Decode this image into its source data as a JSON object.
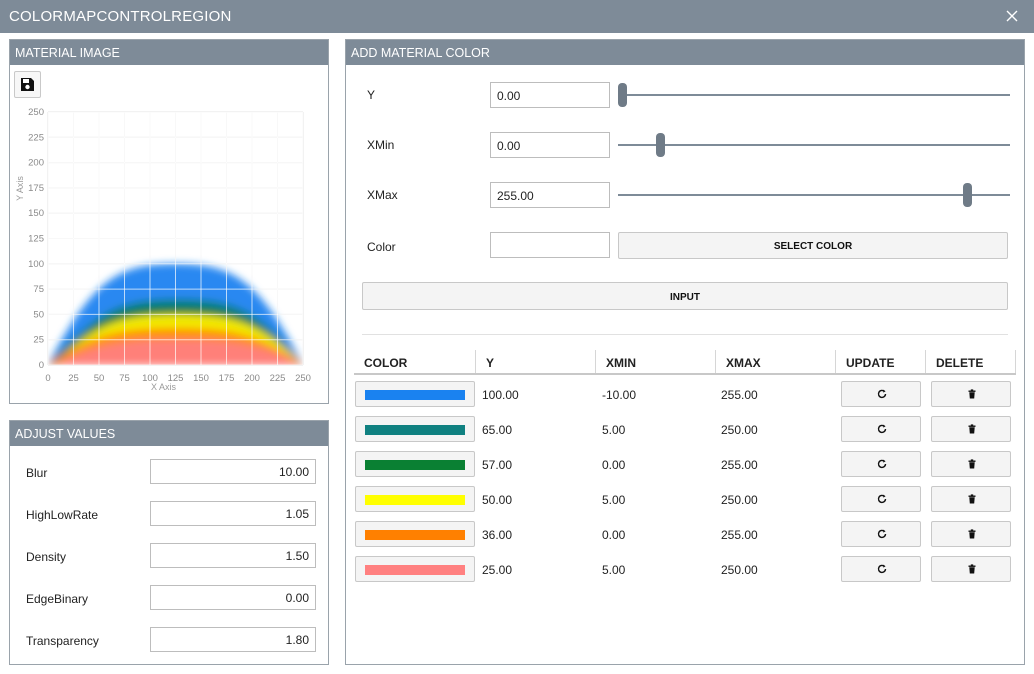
{
  "window": {
    "title": "COLORMAPCONTROLREGION"
  },
  "material_image": {
    "header": "MATERIAL IMAGE",
    "save_icon": "floppy-disk-icon"
  },
  "chart_data": {
    "type": "heatmap",
    "xlabel": "X Axis",
    "ylabel": "Y Axis",
    "xlim": [
      0,
      250
    ],
    "ylim": [
      0,
      250
    ],
    "x_ticks": [
      "0",
      "25",
      "50",
      "75",
      "100",
      "125",
      "150",
      "175",
      "200",
      "225",
      "250"
    ],
    "y_ticks": [
      "0",
      "25",
      "50",
      "75",
      "100",
      "125",
      "150",
      "175",
      "200",
      "225",
      "250"
    ],
    "grid": true,
    "bands": [
      {
        "color": "#1a82f0",
        "y": 100,
        "xmin": -10,
        "xmax": 255
      },
      {
        "color": "#0f8080",
        "y": 65,
        "xmin": 5,
        "xmax": 250
      },
      {
        "color": "#0a8033",
        "y": 57,
        "xmin": 0,
        "xmax": 255
      },
      {
        "color": "#ffee00",
        "y": 50,
        "xmin": 5,
        "xmax": 250
      },
      {
        "color": "#ff8a00",
        "y": 36,
        "xmin": 0,
        "xmax": 255
      },
      {
        "color": "#ff7f7f",
        "y": 25,
        "xmin": 5,
        "xmax": 250
      }
    ]
  },
  "adjust_values": {
    "header": "ADJUST VALUES",
    "rows": [
      {
        "label": "Blur",
        "value": "10.00"
      },
      {
        "label": "HighLowRate",
        "value": "1.05"
      },
      {
        "label": "Density",
        "value": "1.50"
      },
      {
        "label": "EdgeBinary",
        "value": "0.00"
      },
      {
        "label": "Transparency",
        "value": "1.80"
      }
    ]
  },
  "add_material_color": {
    "header": "ADD MATERIAL COLOR",
    "y": {
      "label": "Y",
      "value": "0.00",
      "slider_fraction": 0.0
    },
    "xmin": {
      "label": "XMin",
      "value": "0.00",
      "slider_fraction": 0.1
    },
    "xmax": {
      "label": "XMax",
      "value": "255.00",
      "slider_fraction": 0.9
    },
    "color": {
      "label": "Color",
      "value": "",
      "select_label": "SELECT COLOR"
    },
    "input_label": "INPUT"
  },
  "table": {
    "headers": [
      "COLOR",
      "Y",
      "XMIN",
      "XMAX",
      "UPDATE",
      "DELETE"
    ],
    "update_icon": "refresh-icon",
    "delete_icon": "trash-icon",
    "rows": [
      {
        "color": "#1a82f0",
        "y": "100.00",
        "xmin": "-10.00",
        "xmax": "255.00"
      },
      {
        "color": "#0f8080",
        "y": "65.00",
        "xmin": "5.00",
        "xmax": "250.00"
      },
      {
        "color": "#0a8033",
        "y": "57.00",
        "xmin": "0.00",
        "xmax": "255.00"
      },
      {
        "color": "#ffff00",
        "y": "50.00",
        "xmin": "5.00",
        "xmax": "250.00"
      },
      {
        "color": "#ff8000",
        "y": "36.00",
        "xmin": "0.00",
        "xmax": "255.00"
      },
      {
        "color": "#ff8080",
        "y": "25.00",
        "xmin": "5.00",
        "xmax": "250.00"
      }
    ]
  }
}
